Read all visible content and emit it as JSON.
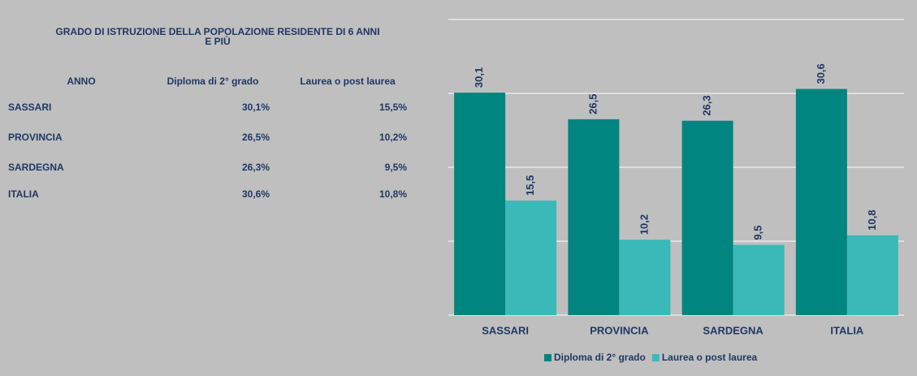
{
  "table": {
    "title": [
      "GRADO DI ISTRUZIONE DELLA POPOLAZIONE RESIDENTE DI 6 ANNI",
      "E PIÙ"
    ],
    "header": [
      "ANNO",
      "Diploma di 2° grado",
      "Laurea o post laurea"
    ],
    "rows": [
      [
        "SASSARI",
        "30,1%",
        "15,5%"
      ],
      [
        "PROVINCIA",
        "26,5%",
        "10,2%"
      ],
      [
        "SARDEGNA",
        "26,3%",
        "9,5%"
      ],
      [
        "ITALIA",
        "30,6%",
        "10,8%"
      ]
    ]
  },
  "chart_data": {
    "type": "bar",
    "categories": [
      "SASSARI",
      "PROVINCIA",
      "SARDEGNA",
      "ITALIA"
    ],
    "series": [
      {
        "name": "Diploma di 2° grado",
        "color": "#008580",
        "values": [
          30.1,
          26.5,
          26.3,
          30.6
        ],
        "value_labels": [
          "30,1",
          "26,5",
          "26,3",
          "30,6"
        ]
      },
      {
        "name": "Laurea o post laurea",
        "color": "#3bb8b8",
        "values": [
          15.5,
          10.2,
          9.5,
          10.8
        ],
        "value_labels": [
          "15,5",
          "10,2",
          "9,5",
          "10,8"
        ]
      }
    ],
    "ylim": [
      0,
      40
    ],
    "yticks": [
      0,
      10,
      20,
      30,
      40
    ],
    "grid": true
  }
}
